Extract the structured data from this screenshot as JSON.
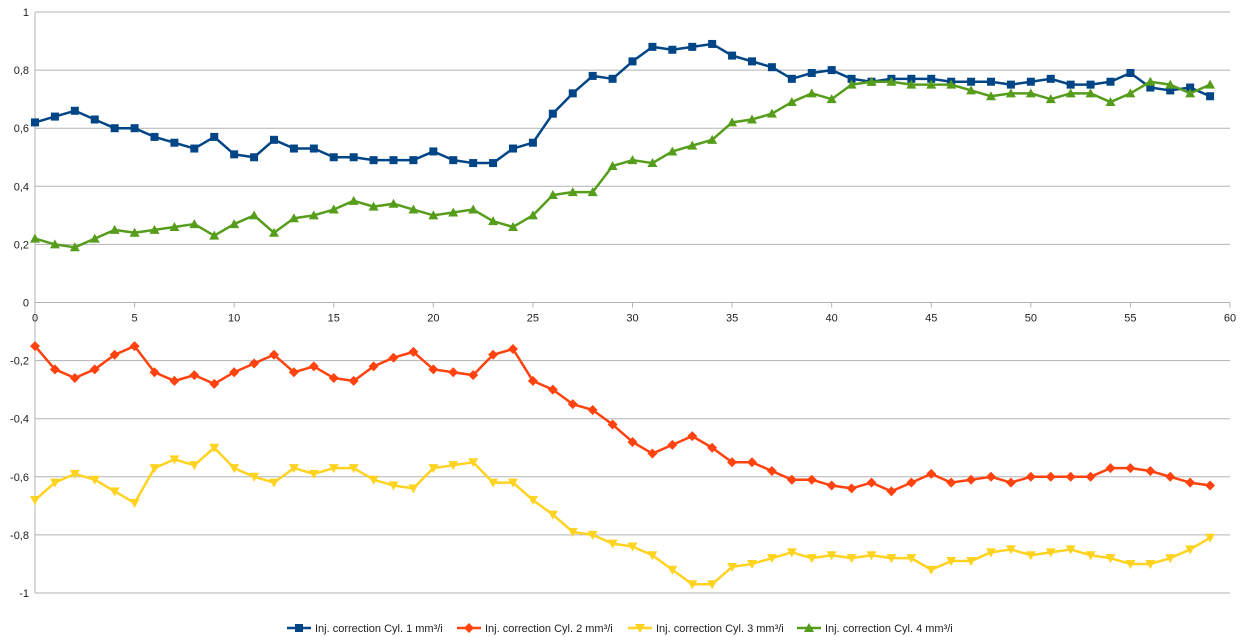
{
  "chart_data": {
    "type": "line",
    "title": "",
    "xlabel": "",
    "ylabel": "",
    "xlim": [
      0,
      60
    ],
    "ylim": [
      -1,
      1
    ],
    "x_ticks": [
      0,
      5,
      10,
      15,
      20,
      25,
      30,
      35,
      40,
      45,
      50,
      55,
      60
    ],
    "x_tick_labels": [
      "0",
      "5",
      "10",
      "15",
      "20",
      "25",
      "30",
      "35",
      "40",
      "45",
      "50",
      "55",
      "60"
    ],
    "y_ticks": [
      1,
      0.8,
      0.6,
      0.4,
      0.2,
      0,
      -0.2,
      -0.4,
      -0.6,
      -0.8,
      -1
    ],
    "y_tick_labels": [
      "1",
      "0,8",
      "0,6",
      "0,4",
      "0,2",
      "0",
      "-0,2",
      "-0,4",
      "-0,6",
      "-0,8",
      "-1"
    ],
    "grid": true,
    "legend_position": "bottom",
    "x": [
      0,
      1,
      2,
      3,
      4,
      5,
      6,
      7,
      8,
      9,
      10,
      11,
      12,
      13,
      14,
      15,
      16,
      17,
      18,
      19,
      20,
      21,
      22,
      23,
      24,
      25,
      26,
      27,
      28,
      29,
      30,
      31,
      32,
      33,
      34,
      35,
      36,
      37,
      38,
      39,
      40,
      41,
      42,
      43,
      44,
      45,
      46,
      47,
      48,
      49,
      50,
      51,
      52,
      53,
      54,
      55,
      56,
      57,
      58,
      59
    ],
    "series": [
      {
        "name": "Inj. correction Cyl. 1 mm³/i",
        "color": "#004586",
        "marker": "square",
        "values": [
          0.62,
          0.64,
          0.66,
          0.63,
          0.6,
          0.6,
          0.57,
          0.55,
          0.53,
          0.57,
          0.51,
          0.5,
          0.56,
          0.53,
          0.53,
          0.5,
          0.5,
          0.49,
          0.49,
          0.49,
          0.52,
          0.49,
          0.48,
          0.48,
          0.53,
          0.55,
          0.65,
          0.72,
          0.78,
          0.77,
          0.83,
          0.88,
          0.87,
          0.88,
          0.89,
          0.85,
          0.83,
          0.81,
          0.77,
          0.79,
          0.8,
          0.77,
          0.76,
          0.77,
          0.77,
          0.77,
          0.76,
          0.76,
          0.76,
          0.75,
          0.76,
          0.77,
          0.75,
          0.75,
          0.76,
          0.79,
          0.74,
          0.73,
          0.74,
          0.71
        ]
      },
      {
        "name": "Inj. correction Cyl. 2 mm³/i",
        "color": "#ff420e",
        "marker": "diamond",
        "values": [
          -0.15,
          -0.23,
          -0.26,
          -0.23,
          -0.18,
          -0.15,
          -0.24,
          -0.27,
          -0.25,
          -0.28,
          -0.24,
          -0.21,
          -0.18,
          -0.24,
          -0.22,
          -0.26,
          -0.27,
          -0.22,
          -0.19,
          -0.17,
          -0.23,
          -0.24,
          -0.25,
          -0.18,
          -0.16,
          -0.27,
          -0.3,
          -0.35,
          -0.37,
          -0.42,
          -0.48,
          -0.52,
          -0.49,
          -0.46,
          -0.5,
          -0.55,
          -0.55,
          -0.58,
          -0.61,
          -0.61,
          -0.63,
          -0.64,
          -0.62,
          -0.65,
          -0.62,
          -0.59,
          -0.62,
          -0.61,
          -0.6,
          -0.62,
          -0.6,
          -0.6,
          -0.6,
          -0.6,
          -0.57,
          -0.57,
          -0.58,
          -0.6,
          -0.62,
          -0.63
        ]
      },
      {
        "name": "Inj. correction Cyl. 3 mm³/i",
        "color": "#ffd320",
        "marker": "triangle-down",
        "values": [
          -0.68,
          -0.62,
          -0.59,
          -0.61,
          -0.65,
          -0.69,
          -0.57,
          -0.54,
          -0.56,
          -0.5,
          -0.57,
          -0.6,
          -0.62,
          -0.57,
          -0.59,
          -0.57,
          -0.57,
          -0.61,
          -0.63,
          -0.64,
          -0.57,
          -0.56,
          -0.55,
          -0.62,
          -0.62,
          -0.68,
          -0.73,
          -0.79,
          -0.8,
          -0.83,
          -0.84,
          -0.87,
          -0.92,
          -0.97,
          -0.97,
          -0.91,
          -0.9,
          -0.88,
          -0.86,
          -0.88,
          -0.87,
          -0.88,
          -0.87,
          -0.88,
          -0.88,
          -0.92,
          -0.89,
          -0.89,
          -0.86,
          -0.85,
          -0.87,
          -0.86,
          -0.85,
          -0.87,
          -0.88,
          -0.9,
          -0.9,
          -0.88,
          -0.85,
          -0.81
        ]
      },
      {
        "name": "Inj. correction Cyl. 4 mm³/i",
        "color": "#579d1c",
        "marker": "triangle-up",
        "values": [
          0.22,
          0.2,
          0.19,
          0.22,
          0.25,
          0.24,
          0.25,
          0.26,
          0.27,
          0.23,
          0.27,
          0.3,
          0.24,
          0.29,
          0.3,
          0.32,
          0.35,
          0.33,
          0.34,
          0.32,
          0.3,
          0.31,
          0.32,
          0.28,
          0.26,
          0.3,
          0.37,
          0.38,
          0.38,
          0.47,
          0.49,
          0.48,
          0.52,
          0.54,
          0.56,
          0.62,
          0.63,
          0.65,
          0.69,
          0.72,
          0.7,
          0.75,
          0.76,
          0.76,
          0.75,
          0.75,
          0.75,
          0.73,
          0.71,
          0.72,
          0.72,
          0.7,
          0.72,
          0.72,
          0.69,
          0.72,
          0.76,
          0.75,
          0.72,
          0.75
        ]
      }
    ]
  }
}
